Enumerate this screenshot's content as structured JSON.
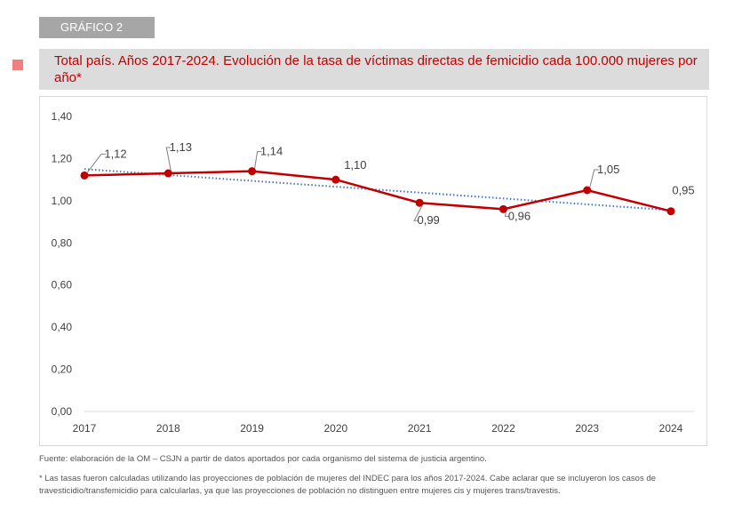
{
  "header": {
    "tag": "GRÁFICO 2",
    "title": "Total país. Años 2017-2024. Evolución de la tasa de víctimas directas de femicidio cada 100.000 mujeres por año*"
  },
  "colors": {
    "series": "#c00000",
    "trend": "#4472c4",
    "title": "#c00000",
    "tag_bg": "#a6a6a6",
    "title_bg": "#dcdcdc",
    "bullet": "#f08080"
  },
  "chart_data": {
    "type": "line",
    "categories": [
      "2017",
      "2018",
      "2019",
      "2020",
      "2021",
      "2022",
      "2023",
      "2024"
    ],
    "series": [
      {
        "values": [
          1.12,
          1.13,
          1.14,
          1.1,
          0.99,
          0.96,
          1.05,
          0.95
        ]
      }
    ],
    "data_labels": [
      "1,12",
      "1,13",
      "1,14",
      "1,10",
      "0,99",
      "0,96",
      "1,05",
      "0,95"
    ],
    "trendline": {
      "type": "linear",
      "style": "dotted",
      "start": 1.15,
      "end": 0.955
    },
    "yticks": [
      "0,00",
      "0,20",
      "0,40",
      "0,60",
      "0,80",
      "1,00",
      "1,20",
      "1,40"
    ],
    "ylim": [
      0,
      1.4
    ],
    "grid": false,
    "legend": "none"
  },
  "footer": {
    "source": "Fuente: elaboración de la OM – CSJN a partir de datos aportados por cada organismo del sistema de justicia argentino.",
    "footnote": "* Las tasas fueron calculadas utilizando las proyecciones de población de mujeres del INDEC para los años 2017-2024. Cabe aclarar que se incluyeron los casos de travesticidio/transfemicidio para calcularlas, ya que las proyecciones de población no distinguen entre mujeres cis y mujeres trans/travestis."
  }
}
